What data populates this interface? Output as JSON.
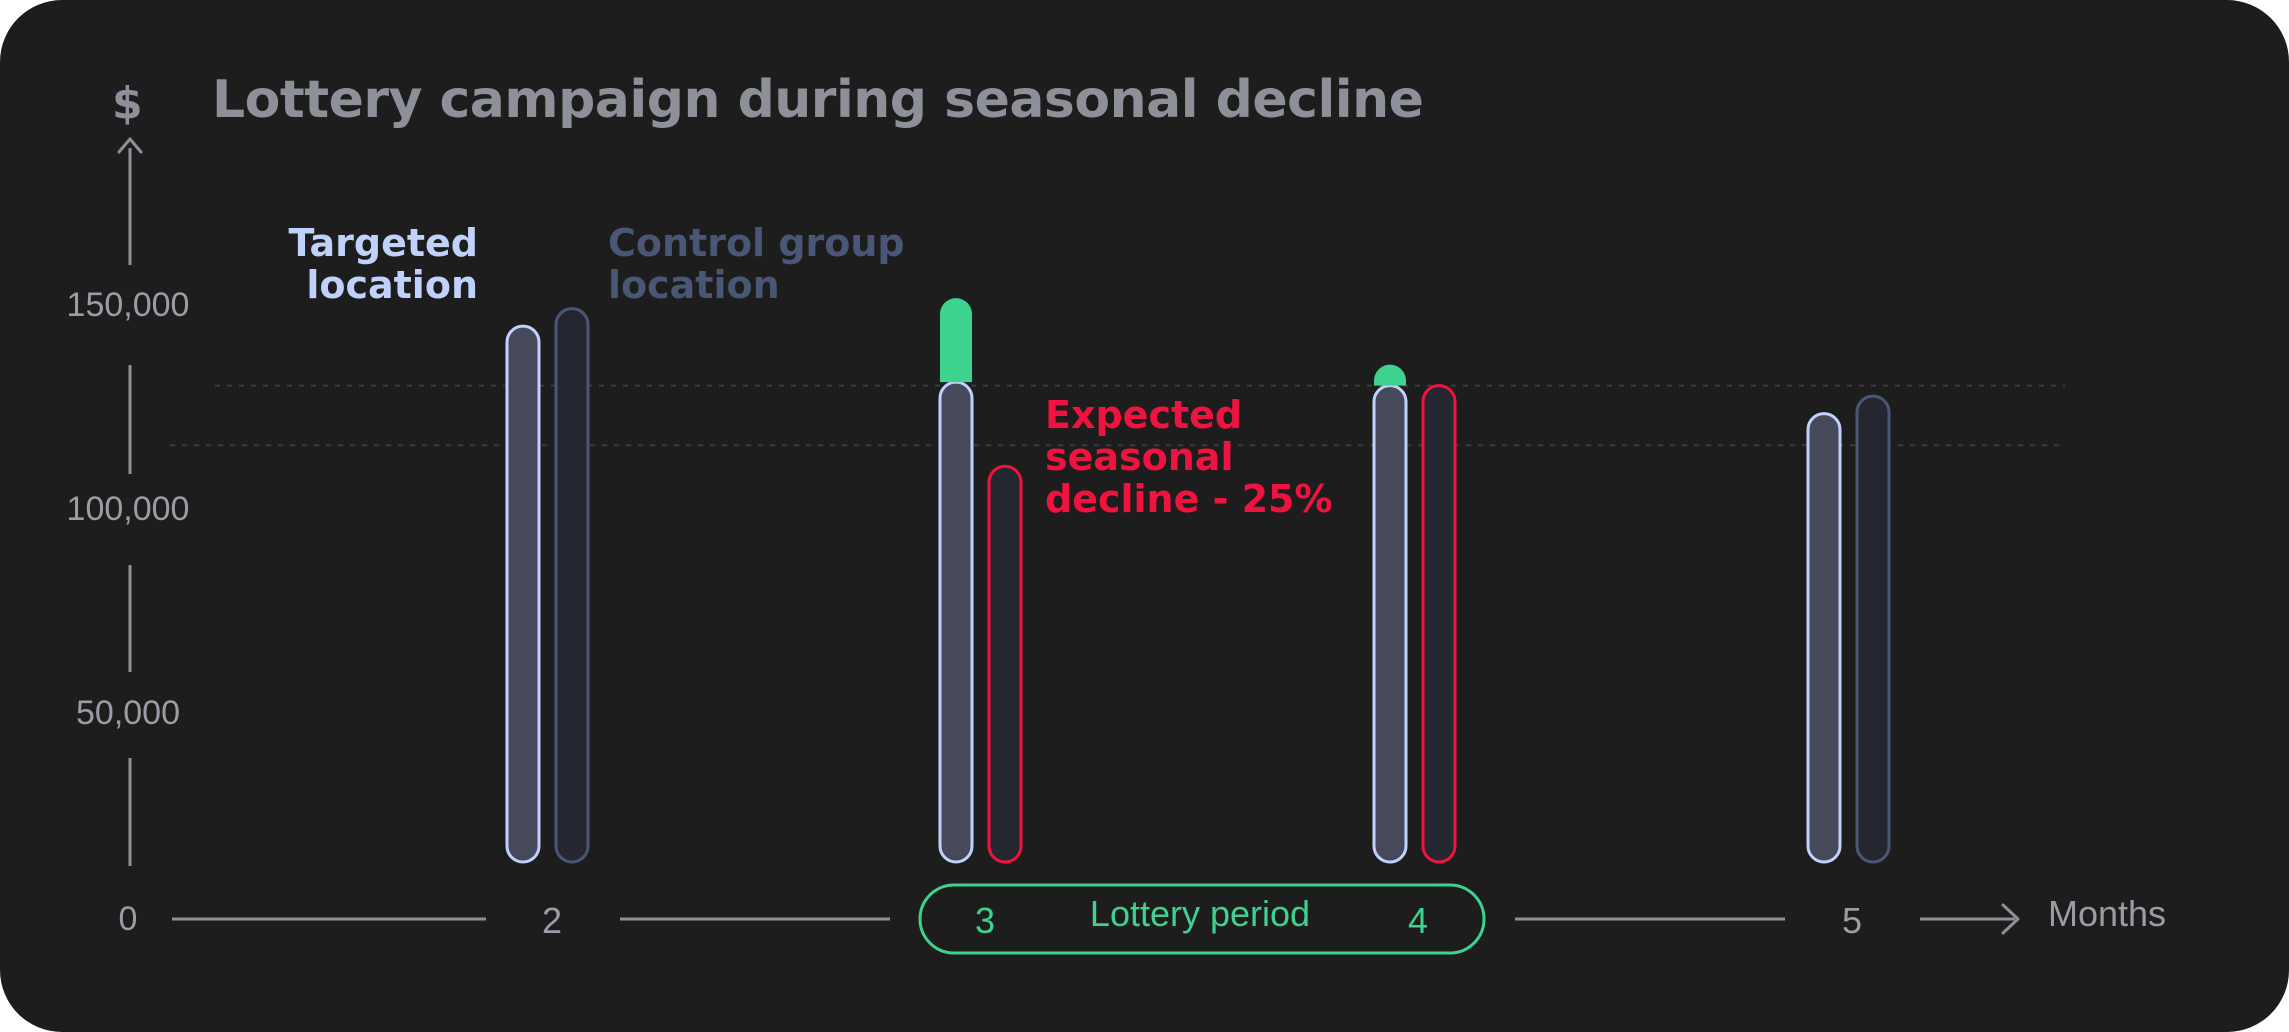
{
  "chart_data": {
    "type": "bar",
    "title": "Lottery campaign during seasonal decline",
    "ylabel": "$",
    "xlabel": "Months",
    "ylim": [
      0,
      160000
    ],
    "yticks": [
      "0",
      "50,000",
      "100,000",
      "150,000"
    ],
    "categories": [
      "2",
      "3",
      "4",
      "5"
    ],
    "series": [
      {
        "name": "Targeted location",
        "values": [
          153000,
          137000,
          136000,
          128000
        ]
      },
      {
        "name": "Control group location",
        "values": [
          158000,
          113000,
          136000,
          133000
        ]
      }
    ],
    "lottery_uplift": [
      0,
      24000,
      6000,
      0
    ],
    "reference_lines": [
      136000,
      119000
    ],
    "lottery_period": {
      "label": "Lottery period",
      "months": [
        "3",
        "4"
      ]
    },
    "annotation": "Expected seasonal decline - 25%",
    "legend": {
      "targeted": "Targeted location",
      "control": "Control group location"
    },
    "grid": false
  },
  "colors": {
    "background": "#1e1d1d",
    "axis": "#8e9099",
    "targeted_stroke": "#c0d2fb",
    "targeted_fill": "#454959",
    "control_stroke": "#4a5675",
    "control_fill": "#242730",
    "decline_stroke": "#f0123f",
    "lottery_green": "#3ed28f"
  }
}
